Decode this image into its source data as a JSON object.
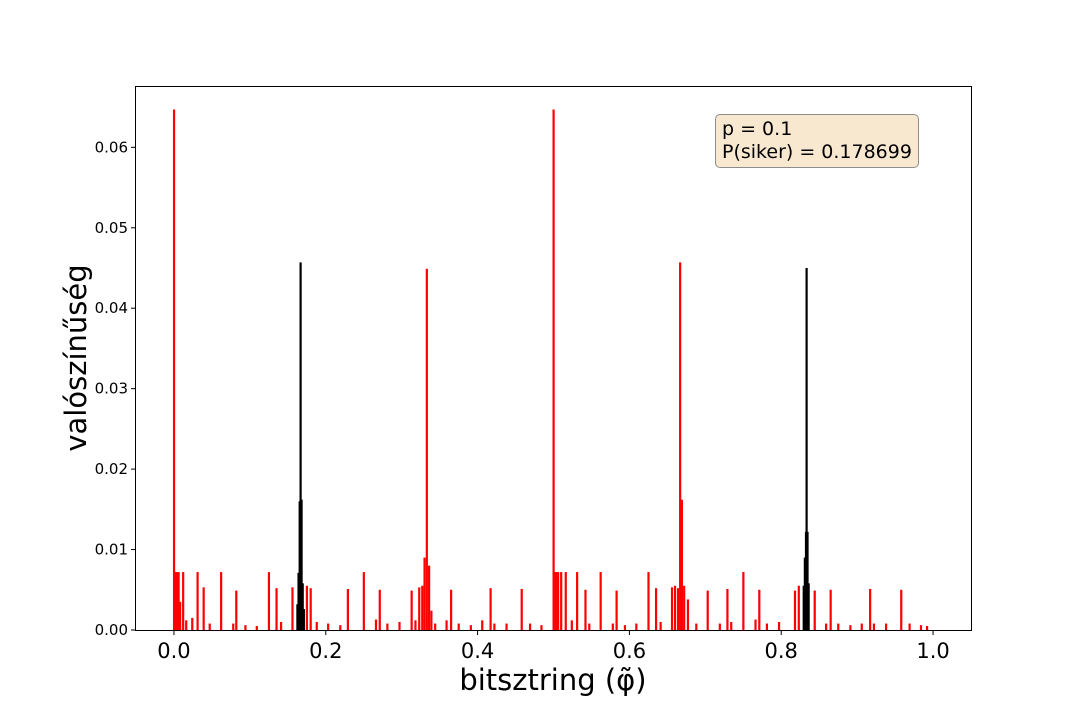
{
  "chart_data": {
    "type": "bar",
    "title": "",
    "xlabel": "bitsztring (φ̃)",
    "ylabel": "valószínűség",
    "xlim": [
      -0.05,
      1.05
    ],
    "ylim": [
      0.0,
      0.0675
    ],
    "xticks": [
      "0.0",
      "0.2",
      "0.4",
      "0.6",
      "0.8",
      "1.0"
    ],
    "xtick_values": [
      0.0,
      0.2,
      0.4,
      0.6,
      0.8,
      1.0
    ],
    "yticks": [
      "0.00",
      "0.01",
      "0.02",
      "0.03",
      "0.04",
      "0.05",
      "0.06"
    ],
    "ytick_values": [
      0.0,
      0.01,
      0.02,
      0.03,
      0.04,
      0.05,
      0.06
    ],
    "grid": false,
    "colors": {
      "success": "#000000",
      "failure": "#ff0000"
    },
    "annotation": {
      "line1": "p = 0.1",
      "line2": "P(siker) = 0.178699"
    },
    "series": [
      {
        "color": "#000000",
        "x": [
          0.1625,
          0.164,
          0.1655,
          0.1667,
          0.168,
          0.1695,
          0.171,
          0.8295,
          0.831,
          0.8325,
          0.8333,
          0.8345,
          0.836
        ],
        "values": [
          0.0032,
          0.0071,
          0.016,
          0.0457,
          0.0162,
          0.0058,
          0.0026,
          0.0055,
          0.009,
          0.0122,
          0.045,
          0.0122,
          0.0058
        ]
      },
      {
        "color": "#ff0000",
        "x": [
          0.0,
          0.002,
          0.004,
          0.006,
          0.008,
          0.012,
          0.016,
          0.024,
          0.031,
          0.039,
          0.047,
          0.062,
          0.078,
          0.082,
          0.094,
          0.109,
          0.125,
          0.135,
          0.141,
          0.156,
          0.175,
          0.18,
          0.188,
          0.203,
          0.219,
          0.229,
          0.25,
          0.266,
          0.271,
          0.281,
          0.297,
          0.313,
          0.318,
          0.323,
          0.327,
          0.33,
          0.333,
          0.336,
          0.339,
          0.344,
          0.359,
          0.365,
          0.375,
          0.391,
          0.406,
          0.417,
          0.422,
          0.438,
          0.458,
          0.469,
          0.484,
          0.5,
          0.502,
          0.504,
          0.506,
          0.51,
          0.516,
          0.524,
          0.531,
          0.542,
          0.547,
          0.562,
          0.578,
          0.583,
          0.594,
          0.609,
          0.625,
          0.635,
          0.641,
          0.656,
          0.66,
          0.664,
          0.6667,
          0.669,
          0.672,
          0.677,
          0.688,
          0.703,
          0.719,
          0.729,
          0.734,
          0.75,
          0.766,
          0.771,
          0.781,
          0.797,
          0.818,
          0.823,
          0.844,
          0.859,
          0.865,
          0.875,
          0.891,
          0.906,
          0.917,
          0.922,
          0.938,
          0.958,
          0.969,
          0.984,
          0.992
        ],
        "values": [
          0.0647,
          0.0072,
          0.0072,
          0.0072,
          0.0035,
          0.0072,
          0.0012,
          0.0015,
          0.0072,
          0.0053,
          0.0008,
          0.0072,
          0.0008,
          0.0049,
          0.0006,
          0.0005,
          0.0072,
          0.0052,
          0.001,
          0.0053,
          0.0055,
          0.0052,
          0.001,
          0.0008,
          0.0006,
          0.0051,
          0.0072,
          0.0013,
          0.005,
          0.0008,
          0.001,
          0.0049,
          0.0012,
          0.0053,
          0.0055,
          0.009,
          0.0449,
          0.008,
          0.0024,
          0.0008,
          0.0012,
          0.005,
          0.0008,
          0.0006,
          0.0012,
          0.0052,
          0.0008,
          0.0008,
          0.0051,
          0.0008,
          0.0006,
          0.0647,
          0.0072,
          0.0072,
          0.0072,
          0.0072,
          0.0072,
          0.0012,
          0.0072,
          0.005,
          0.0008,
          0.0072,
          0.0008,
          0.0049,
          0.0006,
          0.0008,
          0.0072,
          0.0052,
          0.001,
          0.0053,
          0.0055,
          0.0052,
          0.0457,
          0.0162,
          0.0055,
          0.0038,
          0.0008,
          0.0049,
          0.0008,
          0.0051,
          0.001,
          0.0072,
          0.0013,
          0.005,
          0.0008,
          0.001,
          0.0049,
          0.0055,
          0.0049,
          0.0008,
          0.005,
          0.0008,
          0.0006,
          0.0008,
          0.0051,
          0.0008,
          0.0008,
          0.005,
          0.0008,
          0.0006,
          0.0005
        ]
      }
    ]
  }
}
